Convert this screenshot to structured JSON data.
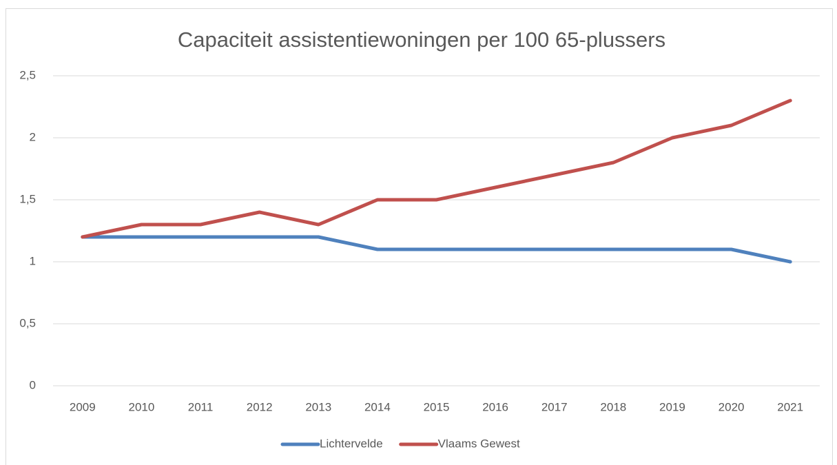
{
  "chart_data": {
    "type": "line",
    "title": "Capaciteit assistentiewoningen per 100 65-plussers",
    "categories": [
      "2009",
      "2010",
      "2011",
      "2012",
      "2013",
      "2014",
      "2015",
      "2016",
      "2017",
      "2018",
      "2019",
      "2020",
      "2021"
    ],
    "series": [
      {
        "name": "Lichtervelde",
        "color": "#4f81bd",
        "values": [
          1.2,
          1.2,
          1.2,
          1.2,
          1.2,
          1.1,
          1.1,
          1.1,
          1.1,
          1.1,
          1.1,
          1.1,
          1.0
        ]
      },
      {
        "name": "Vlaams Gewest",
        "color": "#c0504d",
        "values": [
          1.2,
          1.3,
          1.3,
          1.4,
          1.3,
          1.5,
          1.5,
          1.6,
          1.7,
          1.8,
          2.0,
          2.1,
          2.3
        ]
      }
    ],
    "ylim": [
      0,
      2.5
    ],
    "yticks": [
      0,
      {
        "value": 0.5,
        "label": "0,5"
      },
      1,
      {
        "value": 1.5,
        "label": "1,5"
      },
      2,
      {
        "value": 2.5,
        "label": "2,5"
      }
    ],
    "grid": true,
    "legend": "bottom"
  }
}
